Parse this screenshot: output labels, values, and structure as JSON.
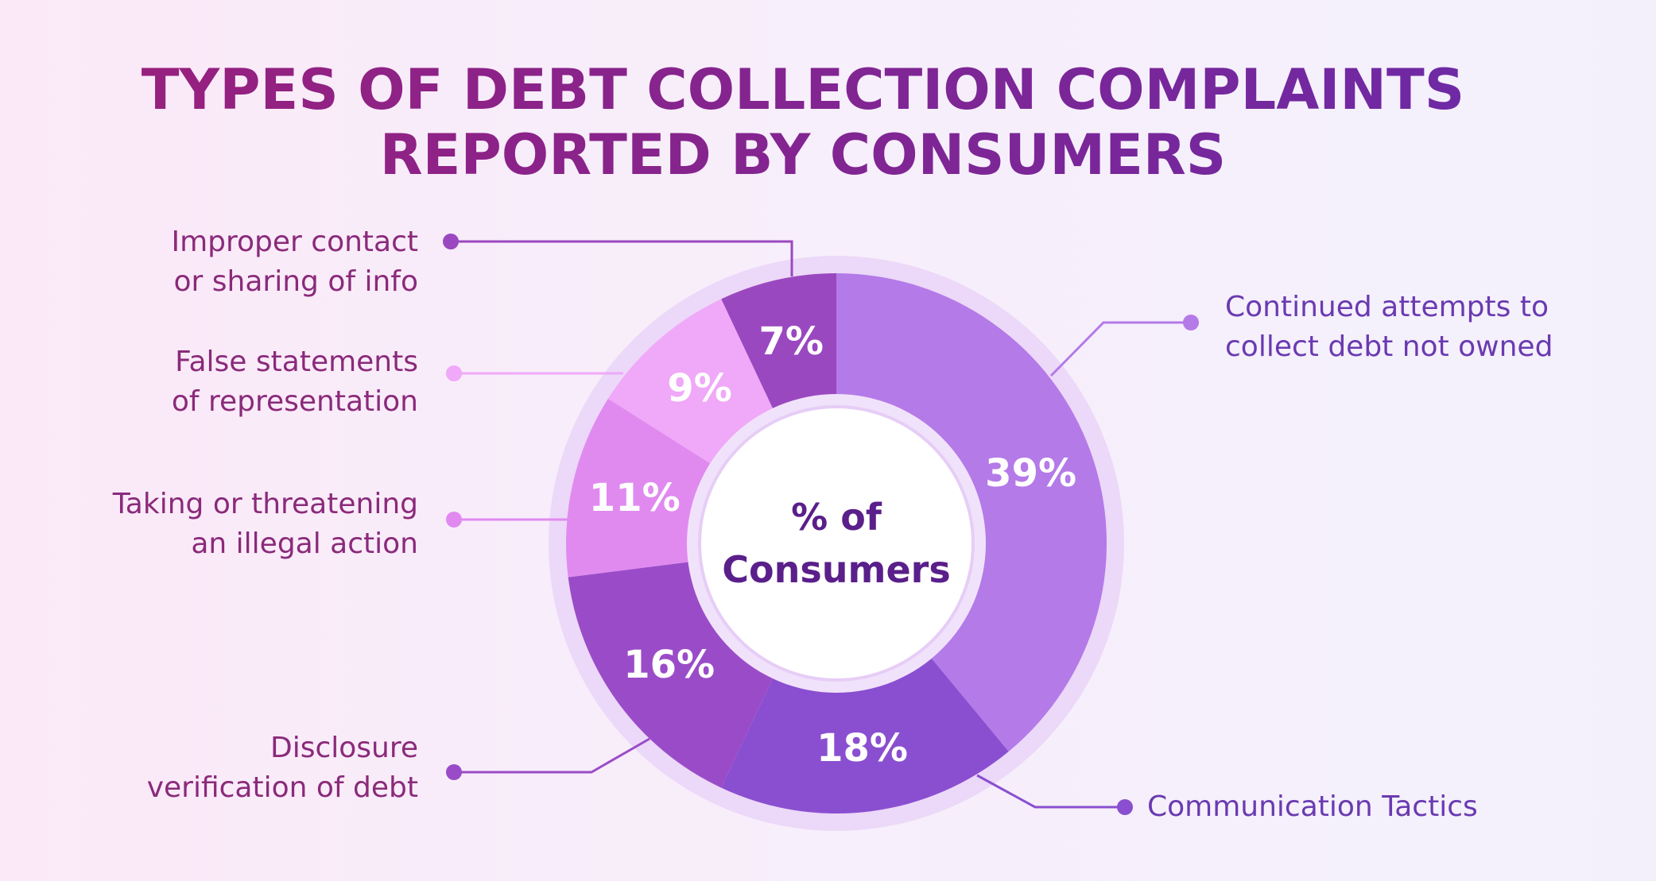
{
  "chart_data": {
    "type": "pie",
    "donut": true,
    "title": "TYPES OF DEBT COLLECTION COMPLAINTS\nREPORTED BY CONSUMERS",
    "center_label": "% of\nConsumers",
    "categories": [
      "Continued attempts to\ncollect debt not owned",
      "Communication Tactics",
      "Disclosure\nverification of debt",
      "Taking or threatening\nan illegal action",
      "False statements\nof representation",
      "Improper contact\nor sharing of info"
    ],
    "values": [
      39,
      18,
      16,
      11,
      9,
      7
    ],
    "value_labels": [
      "39%",
      "18%",
      "16%",
      "11%",
      "9%",
      "7%"
    ],
    "colors": [
      "#b47ae8",
      "#8a4fd0",
      "#9a4cc8",
      "#e08af0",
      "#f0a8f8",
      "#9a48c0"
    ]
  }
}
